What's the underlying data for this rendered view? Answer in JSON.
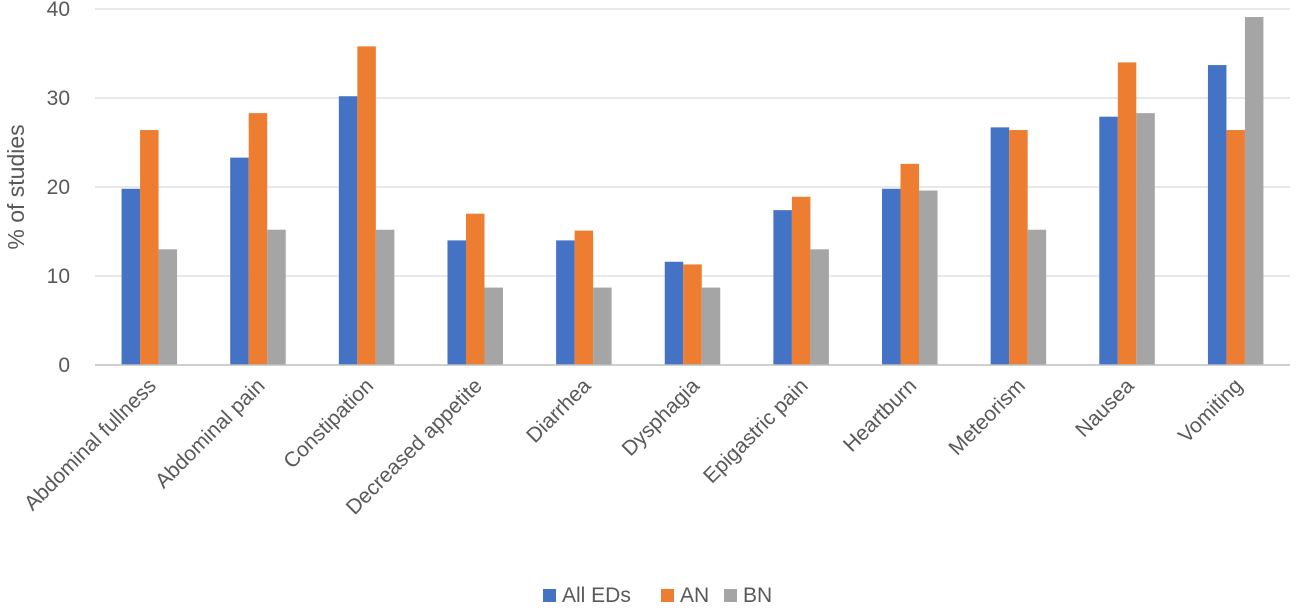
{
  "chart_data": {
    "type": "bar",
    "title": "",
    "xlabel": "",
    "ylabel": "% of studies",
    "ylim": [
      0,
      40
    ],
    "yticks": [
      0,
      10,
      20,
      30,
      40
    ],
    "grid": true,
    "legend_position": "bottom",
    "categories": [
      "Abdominal fullness",
      "Abdominal pain",
      "Constipation",
      "Decreased appetite",
      "Diarrhea",
      "Dysphagia",
      "Epigastric pain",
      "Heartburn",
      "Meteorism",
      "Nausea",
      "Vomiting"
    ],
    "series": [
      {
        "name": "All EDs",
        "color": "#4472C4",
        "values": [
          19.8,
          23.3,
          30.2,
          14.0,
          14.0,
          11.6,
          17.4,
          19.8,
          26.7,
          27.9,
          33.7
        ]
      },
      {
        "name": "AN",
        "color": "#ED7D31",
        "values": [
          26.4,
          28.3,
          35.8,
          17.0,
          15.1,
          11.3,
          18.9,
          22.6,
          26.4,
          34.0,
          26.4
        ]
      },
      {
        "name": "BN",
        "color": "#A5A5A5",
        "values": [
          13.0,
          15.2,
          15.2,
          8.7,
          8.7,
          8.7,
          13.0,
          19.6,
          15.2,
          28.3,
          39.1
        ]
      }
    ]
  }
}
